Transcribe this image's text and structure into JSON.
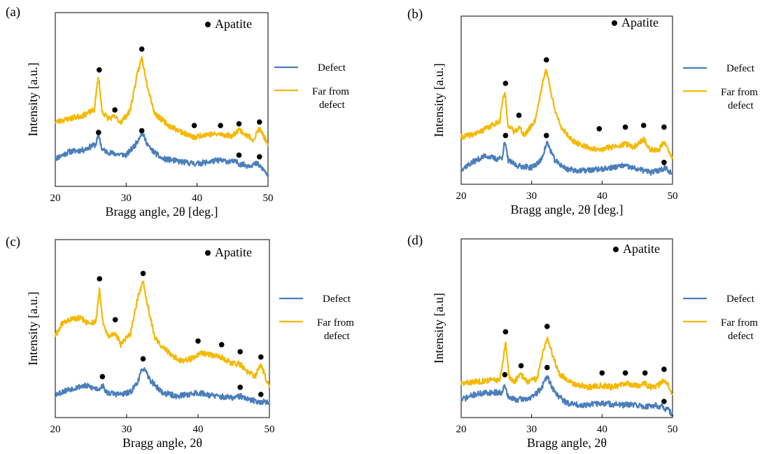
{
  "figure": {
    "series_colors": {
      "defect": "#4a7ebb",
      "far": "#f5b800"
    },
    "marker_color": "#000000"
  },
  "chart_data": [
    {
      "type": "line",
      "panel_label": "(a)",
      "xlabel": "Bragg angle, 2θ [deg.]",
      "ylabel": "Intensity [a.u.]",
      "xlim": [
        20,
        50
      ],
      "ylim": [
        0,
        100
      ],
      "xticks": [
        20,
        30,
        40,
        50
      ],
      "xtick_labels": [
        "20",
        "30",
        "40",
        "50"
      ],
      "grid": false,
      "legend_position": "right",
      "marker_legend": "Apatite",
      "series": [
        {
          "name": "Defect",
          "key": "defect",
          "seed": 11,
          "x": [
            20,
            22,
            24,
            25,
            25.7,
            26.1,
            26.6,
            28,
            30,
            31.3,
            32.2,
            33.3,
            35,
            38,
            40,
            43,
            45.5,
            46,
            47,
            48.5,
            49.5,
            50
          ],
          "y": [
            16,
            20,
            21,
            23,
            24,
            30,
            21,
            19,
            18,
            24,
            31,
            22,
            16,
            14,
            13,
            15,
            14,
            13,
            12,
            13,
            9,
            6
          ]
        },
        {
          "name": "Far from defect",
          "key": "far",
          "seed": 23,
          "x": [
            20,
            22,
            24,
            25.5,
            25.8,
            26.1,
            26.6,
            27.5,
            28.4,
            29.2,
            30.5,
            31.6,
            32.2,
            32.9,
            34,
            36,
            38,
            39.6,
            41,
            43.3,
            45,
            45.9,
            46.7,
            48,
            48.7,
            49.3,
            50
          ],
          "y": [
            37,
            39,
            41,
            44,
            55,
            63,
            43,
            39,
            40,
            37,
            43,
            65,
            74,
            60,
            42,
            35,
            31,
            28,
            30,
            30,
            29,
            33,
            30,
            27,
            33,
            30,
            23
          ]
        }
      ],
      "markers": [
        {
          "x": 26.2,
          "y": 67
        },
        {
          "x": 28.4,
          "y": 44
        },
        {
          "x": 32.2,
          "y": 79
        },
        {
          "x": 39.6,
          "y": 35
        },
        {
          "x": 43.3,
          "y": 35
        },
        {
          "x": 45.9,
          "y": 36
        },
        {
          "x": 48.8,
          "y": 37
        },
        {
          "x": 26.1,
          "y": 31
        },
        {
          "x": 32.2,
          "y": 32
        },
        {
          "x": 45.9,
          "y": 18
        },
        {
          "x": 48.8,
          "y": 17
        }
      ]
    },
    {
      "type": "line",
      "panel_label": "(b)",
      "xlabel": "Bragg angle, 2θ [deg.]",
      "ylabel": "Intensity [a.u.]",
      "xlim": [
        20,
        50
      ],
      "ylim": [
        0,
        100
      ],
      "xticks": [
        20,
        30,
        40,
        50
      ],
      "xtick_labels": [
        "20",
        "30",
        "40",
        "50"
      ],
      "grid": false,
      "legend_position": "right",
      "marker_legend": "Apatite",
      "series": [
        {
          "name": "Defect",
          "key": "defect",
          "seed": 37,
          "x": [
            20,
            22,
            23.5,
            25,
            25.8,
            26.2,
            26.7,
            28,
            30,
            31.3,
            32.2,
            33.3,
            35,
            37,
            40,
            43,
            45,
            46,
            47,
            48.5,
            49,
            50
          ],
          "y": [
            9,
            14,
            17,
            15,
            16,
            25,
            14,
            11,
            10,
            14,
            25,
            14,
            9,
            8,
            9,
            11,
            9,
            8,
            7,
            9,
            10,
            6
          ]
        },
        {
          "name": "Far from defect",
          "key": "far",
          "seed": 41,
          "x": [
            20,
            22,
            24,
            25.5,
            25.8,
            26.2,
            26.6,
            27.5,
            28.2,
            29,
            30.5,
            31.5,
            32.1,
            32.8,
            34,
            36,
            38,
            39.5,
            41,
            43.3,
            44.5,
            45.9,
            46.7,
            48,
            48.7,
            49.3,
            50
          ],
          "y": [
            28,
            30,
            34,
            38,
            48,
            55,
            36,
            31,
            34,
            29,
            38,
            59,
            69,
            53,
            35,
            25,
            22,
            20,
            22,
            24,
            22,
            27,
            21,
            20,
            25,
            21,
            15
          ]
        }
      ],
      "markers": [
        {
          "x": 26.3,
          "y": 60
        },
        {
          "x": 28.2,
          "y": 41
        },
        {
          "x": 32.1,
          "y": 74
        },
        {
          "x": 39.6,
          "y": 33
        },
        {
          "x": 43.3,
          "y": 34
        },
        {
          "x": 45.9,
          "y": 35
        },
        {
          "x": 48.8,
          "y": 34
        },
        {
          "x": 26.3,
          "y": 29
        },
        {
          "x": 32.1,
          "y": 29
        },
        {
          "x": 48.8,
          "y": 13
        }
      ]
    },
    {
      "type": "line",
      "panel_label": "(c)",
      "xlabel": "Bragg angle, 2θ",
      "ylabel": "Intensity [a.u.]",
      "xlim": [
        20,
        50
      ],
      "ylim": [
        0,
        100
      ],
      "xticks": [
        20,
        30,
        40,
        50
      ],
      "xtick_labels": [
        "20",
        "30",
        "40",
        "50"
      ],
      "grid": false,
      "legend_position": "right",
      "marker_legend": "Apatite",
      "series": [
        {
          "name": "Defect",
          "key": "defect",
          "seed": 53,
          "x": [
            20,
            22,
            24,
            26,
            26.6,
            27.2,
            29,
            30.5,
            31.5,
            32.3,
            33.3,
            35,
            37,
            40,
            42.5,
            45,
            46,
            47,
            48.5,
            49.5,
            50
          ],
          "y": [
            13,
            16,
            18,
            16,
            18,
            14,
            13,
            14,
            20,
            28,
            21,
            14,
            12,
            14,
            12,
            11,
            12,
            10,
            9,
            9,
            7
          ]
        },
        {
          "name": "Far from defect",
          "key": "far",
          "seed": 61,
          "x": [
            20,
            21,
            22,
            23.5,
            24.5,
            25.7,
            26.2,
            26.7,
            27.5,
            28.3,
            29.2,
            30.5,
            31.6,
            32.3,
            33,
            34,
            36,
            37.5,
            39,
            40.5,
            42,
            43.3,
            44.5,
            45.9,
            46.8,
            48,
            48.8,
            49.5,
            50
          ],
          "y": [
            46,
            53,
            55,
            56,
            53,
            54,
            72,
            52,
            45,
            48,
            41,
            47,
            68,
            76,
            62,
            44,
            36,
            32,
            33,
            36,
            35,
            34,
            31,
            30,
            26,
            23,
            30,
            22,
            17
          ]
        }
      ],
      "markers": [
        {
          "x": 26.2,
          "y": 78
        },
        {
          "x": 28.4,
          "y": 55
        },
        {
          "x": 32.3,
          "y": 81
        },
        {
          "x": 40,
          "y": 43
        },
        {
          "x": 43.3,
          "y": 41
        },
        {
          "x": 45.9,
          "y": 37
        },
        {
          "x": 48.8,
          "y": 34
        },
        {
          "x": 26.6,
          "y": 23
        },
        {
          "x": 32.3,
          "y": 33
        },
        {
          "x": 45.9,
          "y": 17
        },
        {
          "x": 48.8,
          "y": 13
        }
      ]
    },
    {
      "type": "line",
      "panel_label": "(d)",
      "xlabel": "Bragg angle, 2θ",
      "ylabel": "Intensity [a.u]",
      "xlim": [
        20,
        50
      ],
      "ylim": [
        0,
        100
      ],
      "xticks": [
        20,
        30,
        40,
        50
      ],
      "xtick_labels": [
        "20",
        "30",
        "40",
        "50"
      ],
      "grid": false,
      "legend_position": "right",
      "marker_legend": "Apatite",
      "series": [
        {
          "name": "Defect",
          "key": "defect",
          "seed": 71,
          "x": [
            20,
            22,
            24,
            25.7,
            26.2,
            26.7,
            28,
            30,
            31.3,
            32.2,
            33.3,
            35,
            37,
            40,
            43,
            45,
            46,
            47.5,
            48.5,
            49.5,
            50
          ],
          "y": [
            10,
            13,
            14,
            14,
            18,
            11,
            10,
            11,
            16,
            23,
            14,
            8,
            7,
            8,
            7,
            7,
            6,
            7,
            6,
            4,
            1
          ]
        },
        {
          "name": "Far from defect",
          "key": "far",
          "seed": 83,
          "x": [
            20,
            22,
            24,
            25.5,
            25.9,
            26.3,
            26.8,
            27.5,
            28.5,
            29.5,
            30.8,
            31.6,
            32.2,
            32.9,
            34,
            36,
            38,
            40,
            41.5,
            43.3,
            45,
            46,
            47,
            48,
            48.8,
            49.4,
            50
          ],
          "y": [
            19,
            20,
            21,
            21,
            30,
            42,
            23,
            20,
            24,
            20,
            22,
            37,
            45,
            36,
            24,
            19,
            17,
            18,
            17,
            19,
            18,
            19,
            17,
            18,
            21,
            18,
            13
          ]
        }
      ],
      "markers": [
        {
          "x": 26.3,
          "y": 48
        },
        {
          "x": 28.5,
          "y": 29
        },
        {
          "x": 32.2,
          "y": 51
        },
        {
          "x": 40,
          "y": 25
        },
        {
          "x": 43.3,
          "y": 25
        },
        {
          "x": 46.1,
          "y": 25
        },
        {
          "x": 48.8,
          "y": 27
        },
        {
          "x": 26.2,
          "y": 24
        },
        {
          "x": 32.2,
          "y": 28
        },
        {
          "x": 48.8,
          "y": 9
        }
      ]
    }
  ]
}
